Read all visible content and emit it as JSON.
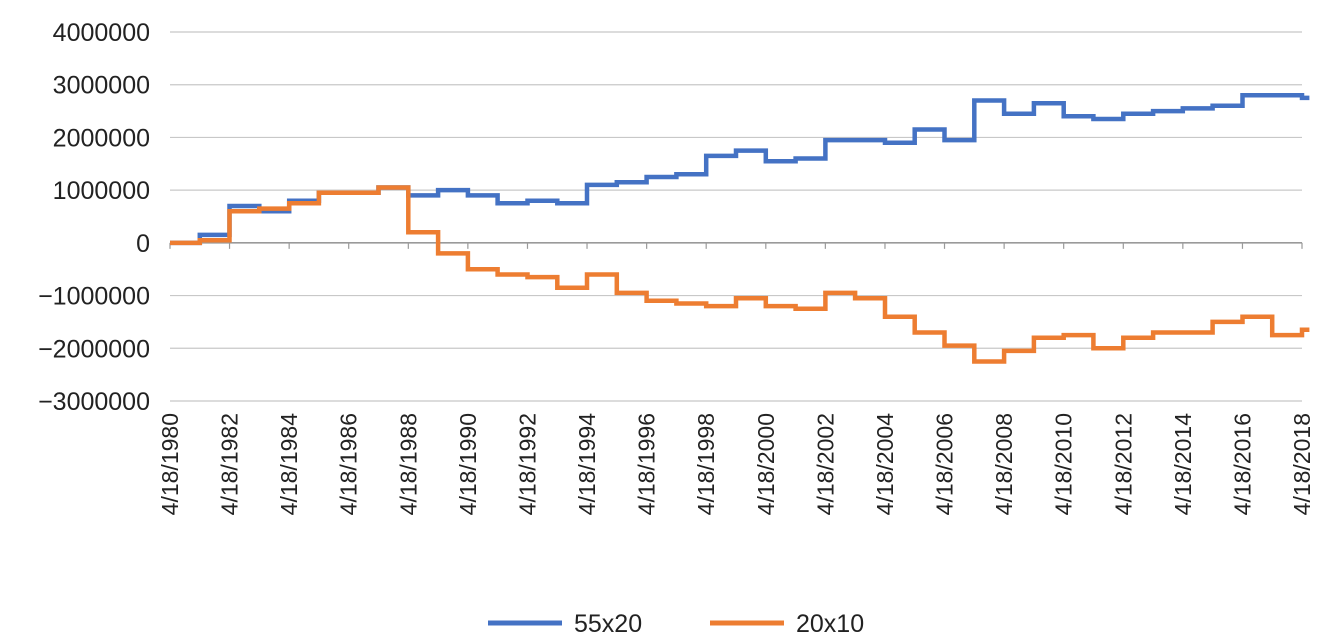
{
  "chart_data": {
    "type": "line",
    "title": "",
    "xlabel": "",
    "ylabel": "",
    "ylim": [
      -3000000,
      4000000
    ],
    "y_ticks": [
      4000000,
      3000000,
      2000000,
      1000000,
      0,
      -1000000,
      -2000000,
      -3000000
    ],
    "y_tick_labels": [
      "4000000",
      "3000000",
      "2000000",
      "1000000",
      "0",
      "−1000000",
      "−2000000",
      "−3000000"
    ],
    "x_tick_labels": [
      "4/18/1980",
      "4/18/1982",
      "4/18/1984",
      "4/18/1986",
      "4/18/1988",
      "4/18/1990",
      "4/18/1992",
      "4/18/1994",
      "4/18/1996",
      "4/18/1998",
      "4/18/2000",
      "4/18/2002",
      "4/18/2004",
      "4/18/2006",
      "4/18/2008",
      "4/18/2010",
      "4/18/2012",
      "4/18/2014",
      "4/18/2016",
      "4/18/2018"
    ],
    "xlim": [
      "4/18/1980",
      "4/18/2018"
    ],
    "grid": true,
    "legend_position": "bottom",
    "x": [
      "4/18/1980",
      "4/18/1981",
      "4/18/1982",
      "4/18/1983",
      "4/18/1984",
      "4/18/1985",
      "4/18/1986",
      "4/18/1987",
      "4/18/1988",
      "4/18/1989",
      "4/18/1990",
      "4/18/1991",
      "4/18/1992",
      "4/18/1993",
      "4/18/1994",
      "4/18/1995",
      "4/18/1996",
      "4/18/1997",
      "4/18/1998",
      "4/18/1999",
      "4/18/2000",
      "4/18/2001",
      "4/18/2002",
      "4/18/2003",
      "4/18/2004",
      "4/18/2005",
      "4/18/2006",
      "4/18/2007",
      "4/18/2008",
      "4/18/2009",
      "4/18/2010",
      "4/18/2011",
      "4/18/2012",
      "4/18/2013",
      "4/18/2014",
      "4/18/2015",
      "4/18/2016",
      "4/18/2017",
      "4/18/2018",
      "7/18/2018"
    ],
    "series": [
      {
        "name": "55x20",
        "color": "#4472C4",
        "values": [
          0,
          150000,
          700000,
          600000,
          800000,
          950000,
          950000,
          1050000,
          900000,
          1000000,
          900000,
          750000,
          800000,
          750000,
          1100000,
          1150000,
          1250000,
          1300000,
          1650000,
          1750000,
          1550000,
          1600000,
          1950000,
          1950000,
          1900000,
          2150000,
          1950000,
          2700000,
          2450000,
          2650000,
          2400000,
          2350000,
          2450000,
          2500000,
          2550000,
          2600000,
          2800000,
          2800000,
          2750000,
          2750000
        ]
      },
      {
        "name": "20x10",
        "color": "#ED7D31",
        "values": [
          0,
          50000,
          600000,
          650000,
          750000,
          950000,
          950000,
          1050000,
          200000,
          -200000,
          -500000,
          -600000,
          -650000,
          -850000,
          -600000,
          -950000,
          -1100000,
          -1150000,
          -1200000,
          -1050000,
          -1200000,
          -1250000,
          -950000,
          -1050000,
          -1400000,
          -1700000,
          -1950000,
          -2250000,
          -2050000,
          -1800000,
          -1750000,
          -2000000,
          -1800000,
          -1700000,
          -1700000,
          -1500000,
          -1400000,
          -1750000,
          -1650000,
          -1650000
        ]
      }
    ]
  }
}
